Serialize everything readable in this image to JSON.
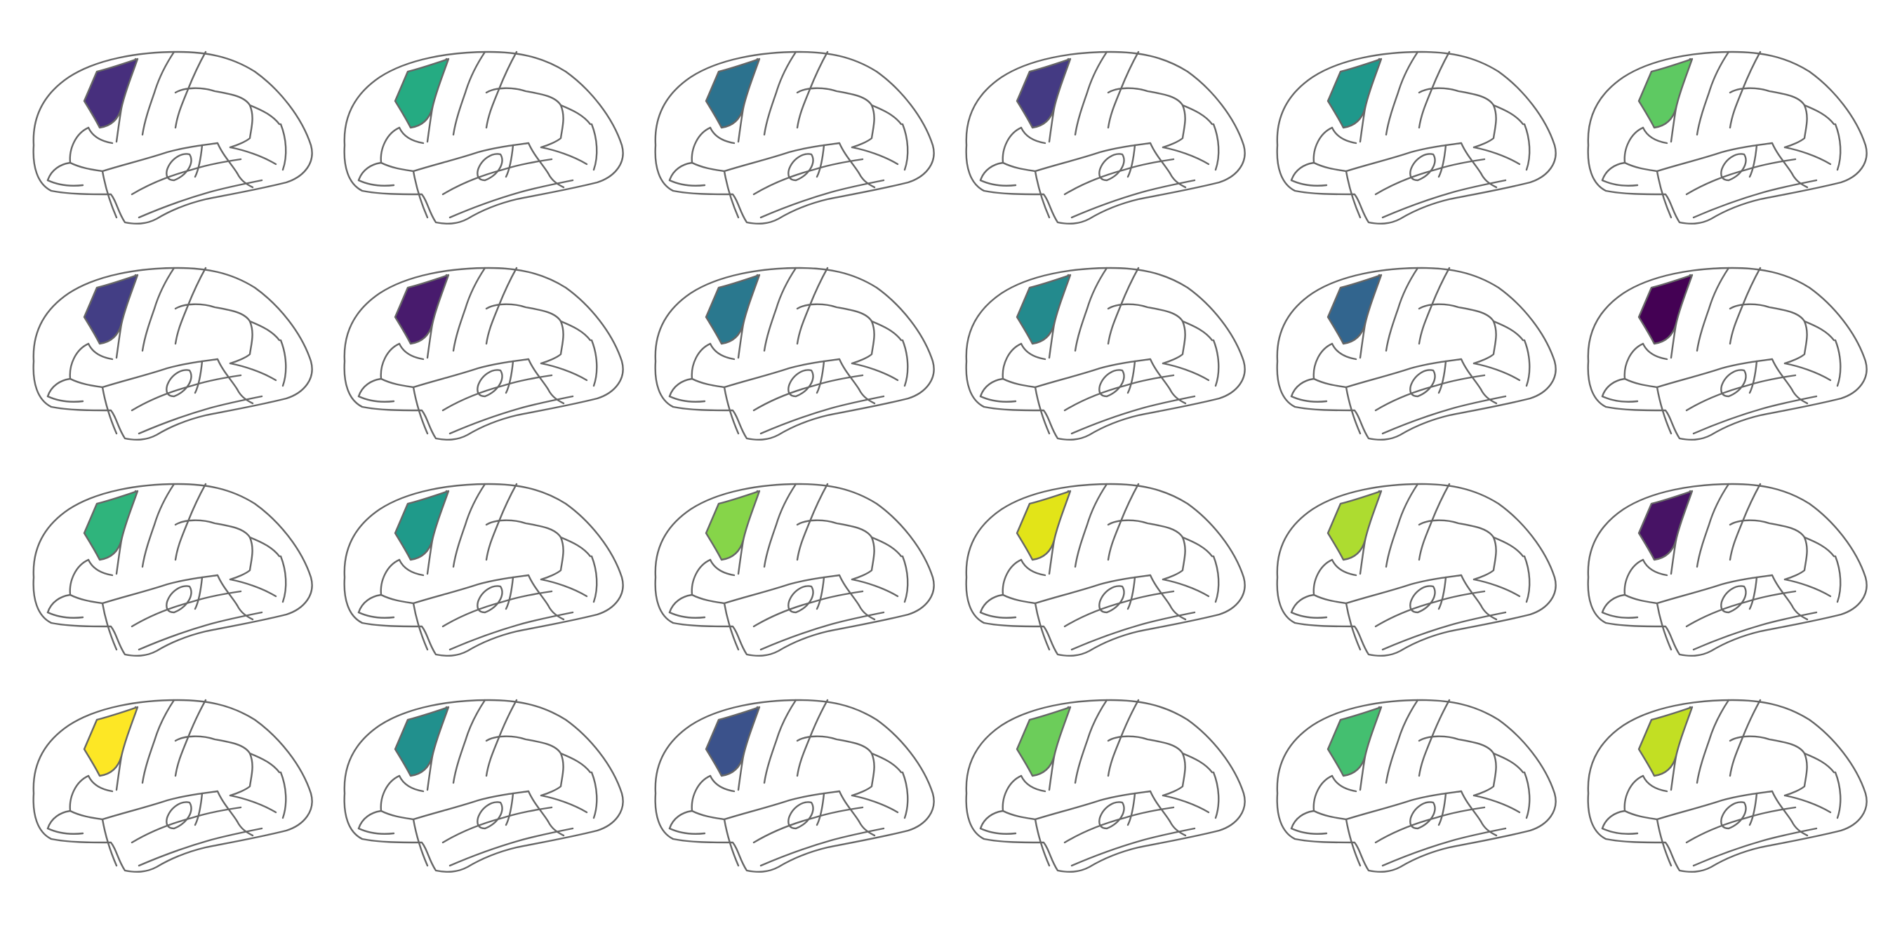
{
  "grid": {
    "rows": 4,
    "columns": 6
  },
  "highlighted_region": "region-highlight",
  "panels": [
    {
      "color": "#472f7d"
    },
    {
      "color": "#25ab82"
    },
    {
      "color": "#2c728e"
    },
    {
      "color": "#443a83"
    },
    {
      "color": "#1f988b"
    },
    {
      "color": "#5ec962"
    },
    {
      "color": "#433e85"
    },
    {
      "color": "#481b6d"
    },
    {
      "color": "#2a788e"
    },
    {
      "color": "#238a8d"
    },
    {
      "color": "#32658e"
    },
    {
      "color": "#440154"
    },
    {
      "color": "#2fb47c"
    },
    {
      "color": "#1f9a8a"
    },
    {
      "color": "#86d549"
    },
    {
      "color": "#e2e418"
    },
    {
      "color": "#addc30"
    },
    {
      "color": "#471365"
    },
    {
      "color": "#fde725"
    },
    {
      "color": "#21908d"
    },
    {
      "color": "#3b528b"
    },
    {
      "color": "#6ccd5a"
    },
    {
      "color": "#44bf70"
    },
    {
      "color": "#c2df23"
    }
  ]
}
